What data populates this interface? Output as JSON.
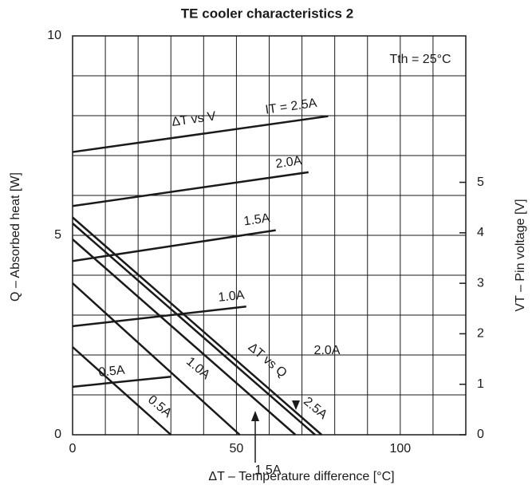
{
  "chart_data": {
    "type": "line",
    "title": "TE cooler characteristics 2",
    "x_label": "ΔT – Temperature difference [°C]",
    "y_label": "Q – Absorbed heat [W]",
    "y2_label": "VT – Pin voltage [V]",
    "annotations": [
      "ΔT vs V",
      "ΔT vs Q",
      "Tth = 25°C"
    ],
    "xlim": [
      0,
      120
    ],
    "xticks": [
      0,
      50,
      100
    ],
    "xgrid": [
      0,
      10,
      20,
      30,
      40,
      50,
      60,
      70,
      80,
      90,
      100,
      110,
      120
    ],
    "ylim": [
      0,
      10
    ],
    "yticks": [
      0,
      5,
      10
    ],
    "ygrid": [
      0,
      1,
      2,
      3,
      4,
      5,
      6,
      7,
      8,
      9,
      10
    ],
    "y2lim": [
      0,
      7.9
    ],
    "y2ticks": [
      0,
      1,
      2,
      3,
      4,
      5
    ],
    "grid": true,
    "color": "#1a1a1a",
    "series": [
      {
        "name": "0.5A",
        "axis": "y2",
        "x": [
          0,
          30
        ],
        "values": [
          0.95,
          1.15
        ]
      },
      {
        "name": "1.0A",
        "axis": "y2",
        "x": [
          0,
          53
        ],
        "values": [
          2.15,
          2.54
        ]
      },
      {
        "name": "1.5A",
        "axis": "y2",
        "x": [
          0,
          62
        ],
        "values": [
          3.44,
          4.05
        ]
      },
      {
        "name": "2.0A",
        "axis": "y2",
        "x": [
          0,
          72
        ],
        "values": [
          4.53,
          5.2
        ]
      },
      {
        "name": "IT = 2.5A",
        "axis": "y2",
        "x": [
          0,
          78
        ],
        "values": [
          5.6,
          6.31
        ]
      },
      {
        "name": "0.5A",
        "axis": "y",
        "x": [
          0,
          30
        ],
        "values": [
          2.2,
          0
        ]
      },
      {
        "name": "1.0A",
        "axis": "y",
        "x": [
          0,
          51
        ],
        "values": [
          3.8,
          0
        ]
      },
      {
        "name": "1.5A",
        "axis": "y",
        "x": [
          0,
          68
        ],
        "values": [
          4.9,
          0
        ]
      },
      {
        "name": "2.0A",
        "axis": "y",
        "x": [
          0,
          74
        ],
        "values": [
          5.3,
          0
        ]
      },
      {
        "name": "2.5A",
        "axis": "y",
        "x": [
          0,
          76
        ],
        "values": [
          5.45,
          0
        ]
      }
    ]
  }
}
